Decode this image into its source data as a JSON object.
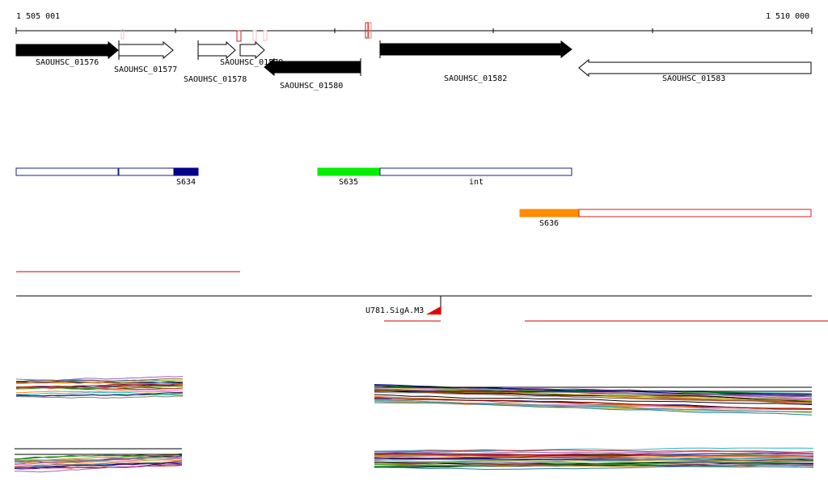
{
  "ruler": {
    "start_label": "1 505 001",
    "end_label": "1 510 000"
  },
  "genes": [
    {
      "label": "SAOUHSC_01576",
      "strand": "+",
      "style": "filled"
    },
    {
      "label": "SAOUHSC_01577",
      "strand": "+",
      "style": "outline"
    },
    {
      "label": "SAOUHSC_01578",
      "strand": "+",
      "style": "outline"
    },
    {
      "label": "SAOUHSC_01579",
      "strand": "+",
      "style": "outline"
    },
    {
      "label": "SAOUHSC_01580",
      "strand": "-",
      "style": "filled"
    },
    {
      "label": "SAOUHSC_01582",
      "strand": "+",
      "style": "filled"
    },
    {
      "label": "SAOUHSC_01583",
      "strand": "-",
      "style": "outline"
    }
  ],
  "segments": {
    "s634": "S634",
    "s635": "S635",
    "int": "int",
    "s636": "S636"
  },
  "promoter": {
    "label": "U781.SigA.M3"
  },
  "colors": {
    "gene_fill": "#000000",
    "segment_outline_blue": "#1a237e",
    "s634_fill": "#00008b",
    "s635_fill": "#00ee00",
    "s636_fill": "#ff8c00",
    "s636_outline": "#cc2222",
    "red_track": "#cc0000",
    "tick_outline": "#e08080"
  }
}
